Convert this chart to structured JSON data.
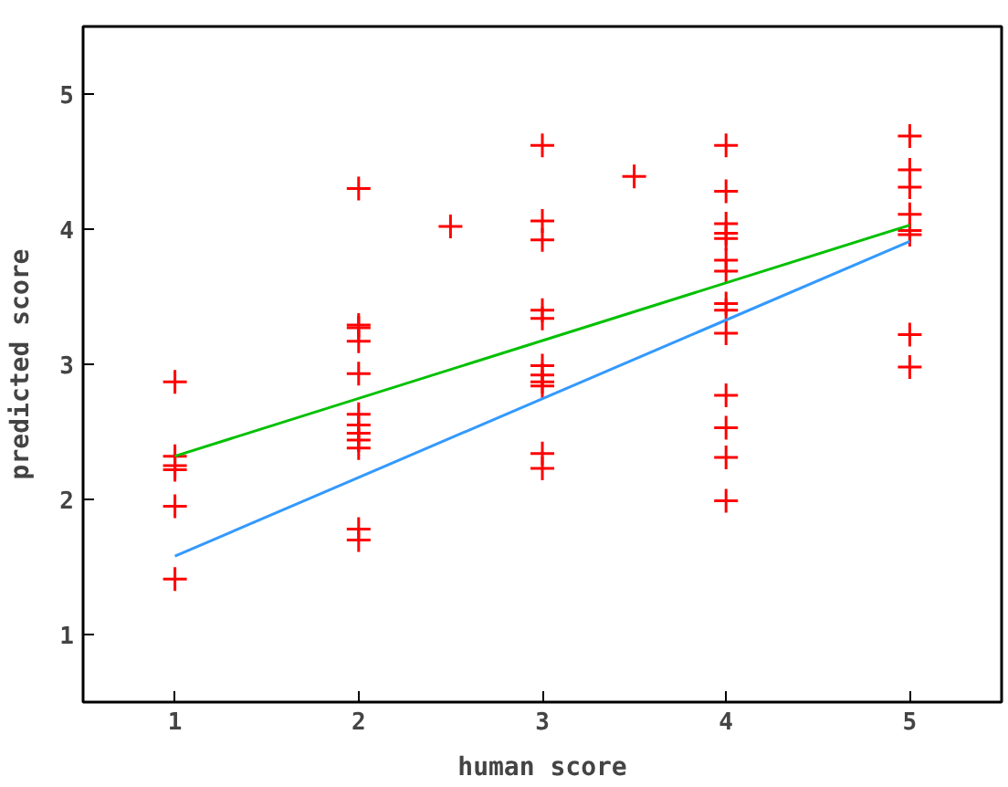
{
  "chart_data": {
    "type": "scatter",
    "xlabel": "human score",
    "ylabel": "predicted score",
    "xlim": [
      0.5,
      5.5
    ],
    "ylim": [
      0.5,
      5.5
    ],
    "xticks": [
      1,
      2,
      3,
      4,
      5
    ],
    "yticks": [
      1,
      2,
      3,
      4,
      5
    ],
    "grid": false,
    "marker": "cross",
    "series": [
      {
        "color": "#ff0000",
        "x": [
          1,
          1,
          1,
          1,
          1,
          1,
          2,
          2,
          2,
          2,
          2,
          2,
          2,
          2,
          2,
          2,
          2,
          2,
          2.5,
          3,
          3,
          3,
          3,
          3,
          3,
          3,
          3,
          3,
          3,
          3,
          3.5,
          4,
          4,
          4,
          4,
          4,
          4,
          4,
          4,
          4,
          4,
          4,
          4,
          4,
          4,
          5,
          5,
          5,
          5,
          5,
          5,
          5,
          5
        ],
        "values": [
          2.87,
          2.32,
          2.25,
          2.22,
          1.95,
          1.41,
          4.3,
          3.29,
          3.27,
          3.17,
          2.93,
          2.63,
          2.55,
          2.49,
          2.44,
          2.38,
          1.78,
          1.7,
          4.02,
          4.62,
          4.06,
          3.92,
          3.4,
          3.34,
          2.99,
          2.92,
          2.87,
          2.84,
          2.34,
          2.23,
          4.39,
          4.62,
          4.28,
          4.04,
          3.97,
          3.93,
          3.77,
          3.69,
          3.45,
          3.4,
          3.23,
          2.77,
          2.53,
          2.31,
          1.99,
          4.69,
          4.44,
          4.31,
          4.11,
          3.99,
          3.96,
          3.22,
          2.98
        ]
      },
      {
        "type": "line",
        "color": "#00c000",
        "marker": "none",
        "x": [
          1,
          5
        ],
        "values": [
          2.32,
          4.03
        ]
      },
      {
        "type": "line",
        "color": "#3399ff",
        "marker": "none",
        "x": [
          1,
          5
        ],
        "values": [
          1.58,
          3.91
        ]
      }
    ]
  }
}
